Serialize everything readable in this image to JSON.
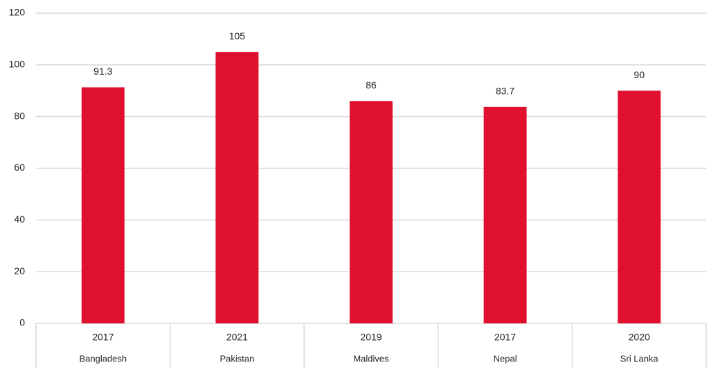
{
  "chart_data": {
    "type": "bar",
    "categories": [
      "Bangladesh",
      "Pakistan",
      "Maldives",
      "Nepal",
      "Sri Lanka"
    ],
    "category_years": [
      "2017",
      "2021",
      "2019",
      "2017",
      "2020"
    ],
    "values": [
      91.3,
      105,
      86,
      83.7,
      90
    ],
    "color": "#e0112f",
    "ylim": [
      0,
      120
    ],
    "yticks": [
      0,
      20,
      40,
      60,
      80,
      100,
      120
    ],
    "grid": true
  }
}
